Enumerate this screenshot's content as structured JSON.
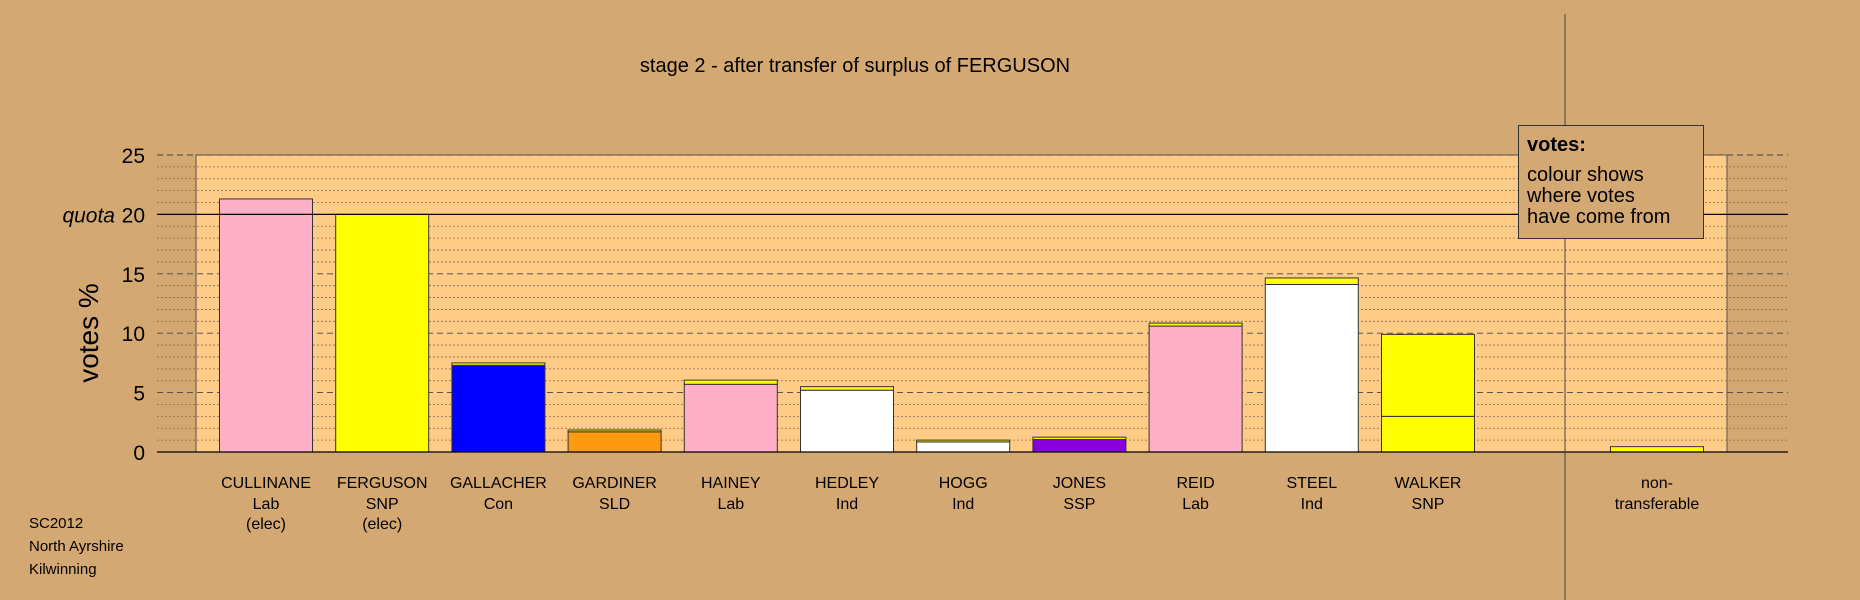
{
  "chart_data": {
    "type": "bar",
    "title": "stage 2 - after transfer of surplus of FERGUSON",
    "ylabel": "votes %",
    "ylim": [
      0,
      25
    ],
    "yticks": [
      0,
      5,
      10,
      15,
      20,
      25
    ],
    "quota": {
      "label": "quota",
      "value": 20
    },
    "grid": true,
    "categories": [
      {
        "name": "CULLINANE",
        "party": "Lab",
        "status": "(elec)",
        "segments": [
          {
            "value": 21.3,
            "color": "#ffb0c8"
          }
        ]
      },
      {
        "name": "FERGUSON",
        "party": "SNP",
        "status": "(elec)",
        "segments": [
          {
            "value": 20.0,
            "color": "#ffff00"
          }
        ]
      },
      {
        "name": "GALLACHER",
        "party": "Con",
        "status": "",
        "segments": [
          {
            "value": 7.3,
            "color": "#0000ff"
          },
          {
            "value": 0.2,
            "color": "#ffff00"
          }
        ]
      },
      {
        "name": "GARDINER",
        "party": "SLD",
        "status": "",
        "segments": [
          {
            "value": 1.7,
            "color": "#ff9a10"
          },
          {
            "value": 0.15,
            "color": "#ffff00"
          }
        ]
      },
      {
        "name": "HAINEY",
        "party": "Lab",
        "status": "",
        "segments": [
          {
            "value": 5.7,
            "color": "#ffb0c8"
          },
          {
            "value": 0.35,
            "color": "#ffff00"
          }
        ]
      },
      {
        "name": "HEDLEY",
        "party": "Ind",
        "status": "",
        "segments": [
          {
            "value": 5.2,
            "color": "#ffffff"
          },
          {
            "value": 0.3,
            "color": "#ffff00"
          }
        ]
      },
      {
        "name": "HOGG",
        "party": "Ind",
        "status": "",
        "segments": [
          {
            "value": 0.85,
            "color": "#ffffff"
          },
          {
            "value": 0.15,
            "color": "#ffff00"
          }
        ]
      },
      {
        "name": "JONES",
        "party": "SSP",
        "status": "",
        "segments": [
          {
            "value": 1.05,
            "color": "#8800dd"
          },
          {
            "value": 0.2,
            "color": "#ffff00"
          }
        ]
      },
      {
        "name": "REID",
        "party": "Lab",
        "status": "",
        "segments": [
          {
            "value": 10.6,
            "color": "#ffb0c8"
          },
          {
            "value": 0.25,
            "color": "#ffff00"
          }
        ]
      },
      {
        "name": "STEEL",
        "party": "Ind",
        "status": "",
        "segments": [
          {
            "value": 14.1,
            "color": "#ffffff"
          },
          {
            "value": 0.55,
            "color": "#ffff00"
          }
        ]
      },
      {
        "name": "WALKER",
        "party": "SNP",
        "status": "",
        "segments": [
          {
            "value": 3.0,
            "color": "#ffff00"
          },
          {
            "value": 6.9,
            "color": "#ffff00"
          }
        ]
      }
    ],
    "nontransferable": {
      "label_line1": "non-",
      "label_line2": "transferable",
      "value": 0.45,
      "color": "#ffff00"
    },
    "colors": {
      "background": "#d4a872",
      "plot_area": "#ffcc88"
    }
  },
  "legend": {
    "title": "votes:",
    "lines": [
      "colour shows",
      "where votes",
      "have come from"
    ]
  },
  "footer": {
    "line1": "SC2012",
    "line2": "North Ayrshire",
    "line3": "Kilwinning"
  }
}
